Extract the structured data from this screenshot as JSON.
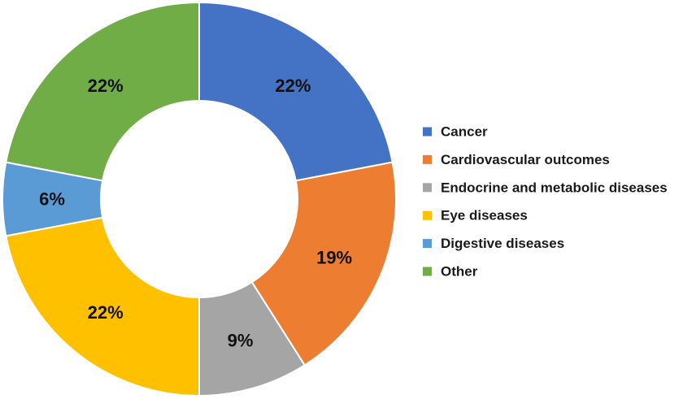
{
  "chart_data": {
    "type": "pie",
    "variant": "donut",
    "title": "",
    "categories": [
      "Cancer",
      "Cardiovascular outcomes",
      "Endocrine and metabolic diseases",
      "Eye diseases",
      "Digestive diseases",
      "Other"
    ],
    "values": [
      22,
      19,
      9,
      22,
      6,
      22
    ],
    "data_labels": [
      "22%",
      "19%",
      "9%",
      "22%",
      "6%",
      "22%"
    ],
    "colors": [
      "#4472C4",
      "#ED7D31",
      "#A5A5A5",
      "#FFC000",
      "#5B9BD5",
      "#70AD47"
    ],
    "start": "top, clockwise",
    "legend_position": "right"
  }
}
